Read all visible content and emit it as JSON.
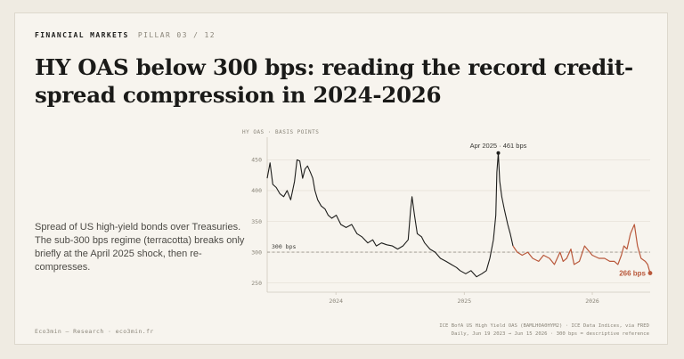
{
  "header": {
    "section": "FINANCIAL MARKETS",
    "pillar": "PILLAR 03 / 12"
  },
  "title": "HY OAS below 300 bps: reading the record credit-spread compression in 2024-2026",
  "description": "Spread of US high-yield bonds over Treasuries. The sub-300 bps regime (terracotta) breaks only briefly at the April 2025 shock, then re-compresses.",
  "footer": {
    "brand": "Eco3min — Research · eco3min.fr",
    "source_line1": "ICE BofA US High Yield OAS (BAMLH0A0HYM2) · ICE Data Indices, via FRED",
    "source_line2": "Daily, Jun 19 2023 → Jun 15 2026 · 300 bps = descriptive reference"
  },
  "colors": {
    "background": "#f7f4ee",
    "line": "#1d1d1b",
    "regime": "#b9583b",
    "reference": "#9a958a"
  },
  "chart_data": {
    "type": "line",
    "ylabel": "HY OAS · BASIS POINTS",
    "x_range": [
      "2023-06-19",
      "2026-06-15"
    ],
    "x_ticks": [
      {
        "date": "2024-01-01",
        "label": "2024"
      },
      {
        "date": "2025-01-01",
        "label": "2025"
      },
      {
        "date": "2026-01-01",
        "label": "2026"
      }
    ],
    "y_ticks": [
      250,
      300,
      350,
      400,
      450
    ],
    "ylim": [
      235,
      478
    ],
    "grid": true,
    "reference_line": {
      "value": 300,
      "label": "300 bps"
    },
    "peak_annotation": {
      "date": "2025-04-08",
      "value": 461,
      "label": "Apr 2025 · 461 bps"
    },
    "end_annotation": {
      "value": 266,
      "label": "266 bps"
    },
    "regime_start": "2025-05-20",
    "series": [
      {
        "dates": [
          "2023-06-19",
          "2023-06-27",
          "2023-07-05",
          "2023-07-15",
          "2023-07-25",
          "2023-08-05",
          "2023-08-15",
          "2023-08-25",
          "2023-09-05",
          "2023-09-12",
          "2023-09-20",
          "2023-09-28",
          "2023-10-05",
          "2023-10-12",
          "2023-10-20",
          "2023-10-27",
          "2023-11-02",
          "2023-11-10",
          "2023-11-20",
          "2023-12-01",
          "2023-12-10",
          "2023-12-20",
          "2024-01-02",
          "2024-01-15",
          "2024-01-30",
          "2024-02-15",
          "2024-03-01",
          "2024-03-15",
          "2024-04-01",
          "2024-04-15",
          "2024-04-25",
          "2024-05-10",
          "2024-05-25",
          "2024-06-10",
          "2024-06-25",
          "2024-07-10",
          "2024-07-25",
          "2024-08-01",
          "2024-08-05",
          "2024-08-12",
          "2024-08-20",
          "2024-09-01",
          "2024-09-10",
          "2024-09-25",
          "2024-10-10",
          "2024-10-25",
          "2024-11-10",
          "2024-11-25",
          "2024-12-10",
          "2024-12-20",
          "2025-01-05",
          "2025-01-20",
          "2025-02-05",
          "2025-02-20",
          "2025-03-05",
          "2025-03-15",
          "2025-03-25",
          "2025-04-01",
          "2025-04-04",
          "2025-04-08",
          "2025-04-12",
          "2025-04-18",
          "2025-04-25",
          "2025-05-05",
          "2025-05-12",
          "2025-05-20",
          "2025-06-01",
          "2025-06-15",
          "2025-07-01",
          "2025-07-15",
          "2025-08-01",
          "2025-08-15",
          "2025-09-01",
          "2025-09-15",
          "2025-10-01",
          "2025-10-10",
          "2025-10-20",
          "2025-11-01",
          "2025-11-10",
          "2025-11-25",
          "2025-12-10",
          "2026-01-01",
          "2026-01-20",
          "2026-02-05",
          "2026-02-20",
          "2026-03-05",
          "2026-03-15",
          "2026-03-25",
          "2026-04-01",
          "2026-04-10",
          "2026-04-20",
          "2026-05-01",
          "2026-05-10",
          "2026-05-20",
          "2026-06-01",
          "2026-06-08",
          "2026-06-15"
        ],
        "values": [
          420,
          445,
          410,
          405,
          395,
          390,
          400,
          385,
          415,
          450,
          448,
          420,
          435,
          440,
          430,
          420,
          400,
          385,
          375,
          370,
          360,
          355,
          360,
          345,
          340,
          345,
          330,
          325,
          315,
          320,
          310,
          315,
          312,
          310,
          305,
          310,
          320,
          370,
          390,
          360,
          330,
          325,
          315,
          305,
          300,
          290,
          285,
          280,
          275,
          270,
          265,
          270,
          260,
          265,
          270,
          290,
          320,
          360,
          430,
          461,
          415,
          390,
          370,
          345,
          330,
          310,
          300,
          295,
          300,
          290,
          285,
          295,
          290,
          280,
          300,
          285,
          290,
          305,
          280,
          285,
          310,
          295,
          290,
          290,
          285,
          285,
          280,
          295,
          310,
          305,
          330,
          345,
          310,
          290,
          285,
          280,
          266
        ]
      }
    ]
  }
}
